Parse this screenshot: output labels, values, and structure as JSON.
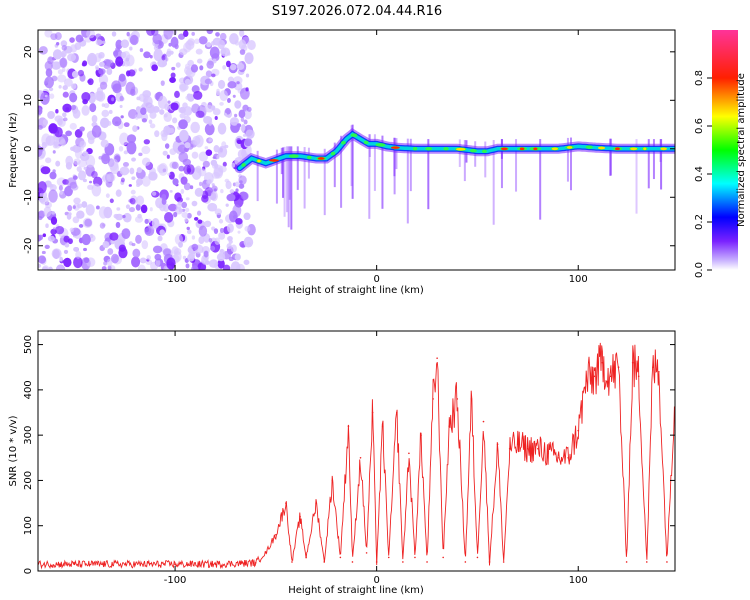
{
  "title": "S197.2026.072.04.44.R16",
  "chart_data": [
    {
      "type": "heatmap",
      "name": "spectrogram",
      "xlabel": "Height of straight line (km)",
      "ylabel": "Frequency (Hz)",
      "xlim": [
        -168,
        148
      ],
      "ylim": [
        -25,
        24.5
      ],
      "xticks": [
        -100,
        0,
        100
      ],
      "yticks": [
        -20,
        -10,
        0,
        10,
        20
      ],
      "colorbar": {
        "label": "Normalized spectral amplitude",
        "range": [
          0,
          1
        ],
        "ticks": [
          0.0,
          0.2,
          0.4,
          0.6,
          0.8
        ],
        "tick_labels": [
          "0.0",
          "0.2",
          "0.4",
          "0.6",
          "0.8"
        ]
      },
      "noise_region_x": [
        -168,
        -62
      ],
      "ridge": {
        "x": [
          -68,
          -62,
          -55,
          -45,
          -38,
          -30,
          -25,
          -20,
          -15,
          -12,
          -8,
          -4,
          0,
          5,
          10,
          20,
          30,
          40,
          50,
          55,
          60,
          70,
          80,
          90,
          100,
          110,
          120,
          130,
          140,
          148
        ],
        "frequency": [
          -4,
          -2,
          -3,
          -1.5,
          -1.5,
          -2,
          -2,
          -0.5,
          2,
          3,
          2,
          1,
          1,
          0.5,
          0.2,
          0,
          0,
          0,
          -0.5,
          -0.5,
          0,
          0,
          0,
          0,
          0.5,
          0.2,
          0,
          0,
          0,
          0
        ]
      }
    },
    {
      "type": "line",
      "name": "snr",
      "xlabel": "Height of straight line (km)",
      "ylabel": "SNR (10 * v/v)",
      "xlim": [
        -168,
        148
      ],
      "ylim": [
        0,
        530
      ],
      "xticks": [
        -100,
        0,
        100
      ],
      "yticks": [
        0,
        100,
        200,
        300,
        400,
        500
      ],
      "color": "#ee2222",
      "series": [
        {
          "name": "SNR",
          "x": [
            -168,
            -150,
            -120,
            -100,
            -80,
            -60,
            -55,
            -50,
            -45,
            -42,
            -38,
            -35,
            -30,
            -26,
            -22,
            -18,
            -14,
            -12,
            -8,
            -5,
            -2,
            0,
            3,
            6,
            10,
            13,
            16,
            19,
            22,
            25,
            28,
            30,
            33,
            36,
            40,
            44,
            47,
            50,
            53,
            56,
            60,
            63,
            66,
            70,
            75,
            80,
            85,
            90,
            95,
            100,
            104,
            108,
            112,
            116,
            120,
            124,
            127,
            130,
            134,
            137,
            140,
            144,
            148
          ],
          "y": [
            15,
            15,
            15,
            15,
            15,
            18,
            40,
            80,
            150,
            20,
            120,
            30,
            150,
            20,
            200,
            30,
            320,
            20,
            250,
            40,
            350,
            20,
            320,
            30,
            350,
            20,
            260,
            30,
            300,
            20,
            380,
            470,
            30,
            320,
            380,
            20,
            380,
            30,
            330,
            20,
            280,
            20,
            270,
            280,
            270,
            270,
            260,
            250,
            250,
            310,
            420,
            430,
            460,
            430,
            450,
            20,
            460,
            430,
            20,
            450,
            440,
            20,
            400
          ]
        }
      ]
    }
  ]
}
